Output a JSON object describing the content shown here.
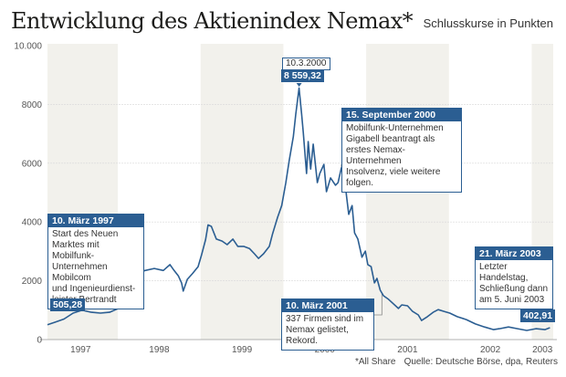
{
  "header": {
    "title": "Entwicklung des Aktienindex Nemax*",
    "subtitle": "Schlusskurse in Punkten"
  },
  "footer": {
    "note": "*All Share",
    "source": "Quelle: Deutsche Börse, dpa, Reuters"
  },
  "colors": {
    "line": "#2b5e92",
    "band": "#f2f1ec",
    "grid": "#d8d8d8",
    "accent": "#2b5e92"
  },
  "chart_data": {
    "type": "line",
    "title": "Entwicklung des Aktienindex Nemax*",
    "subtitle": "Schlusskurse in Punkten",
    "xlabel": "",
    "ylabel": "",
    "ylim": [
      0,
      10000
    ],
    "xlim": [
      1997.15,
      2003.26
    ],
    "grid": true,
    "y_ticks": [
      {
        "value": 0,
        "label": "0"
      },
      {
        "value": 2000,
        "label": "2000"
      },
      {
        "value": 4000,
        "label": "4000"
      },
      {
        "value": 6000,
        "label": "6000"
      },
      {
        "value": 8000,
        "label": "8000"
      },
      {
        "value": 10000,
        "label": "10.000"
      }
    ],
    "x_ticks": [
      {
        "value": 1997.55,
        "label": "1997"
      },
      {
        "value": 1998.5,
        "label": "1998"
      },
      {
        "value": 1999.5,
        "label": "1999"
      },
      {
        "value": 2000.5,
        "label": "2000"
      },
      {
        "value": 2001.5,
        "label": "2001"
      },
      {
        "value": 2002.5,
        "label": "2002"
      },
      {
        "value": 2003.13,
        "label": "2003"
      }
    ],
    "shaded_years": [
      [
        1997.15,
        1998.0
      ],
      [
        1999.0,
        2000.0
      ],
      [
        2001.0,
        2002.0
      ],
      [
        2003.0,
        2003.26
      ]
    ],
    "series": [
      {
        "name": "Nemax All Share",
        "points": [
          [
            1997.15,
            505
          ],
          [
            1997.24,
            590
          ],
          [
            1997.35,
            700
          ],
          [
            1997.46,
            900
          ],
          [
            1997.57,
            1000
          ],
          [
            1997.68,
            930
          ],
          [
            1997.79,
            900
          ],
          [
            1997.9,
            930
          ],
          [
            1998.0,
            1050
          ],
          [
            1998.09,
            1300
          ],
          [
            1998.15,
            1600
          ],
          [
            1998.2,
            2080
          ],
          [
            1998.22,
            2350
          ],
          [
            1998.27,
            2300
          ],
          [
            1998.33,
            2350
          ],
          [
            1998.44,
            2420
          ],
          [
            1998.55,
            2350
          ],
          [
            1998.63,
            2550
          ],
          [
            1998.68,
            2350
          ],
          [
            1998.73,
            2170
          ],
          [
            1998.77,
            1930
          ],
          [
            1998.79,
            1650
          ],
          [
            1998.84,
            2050
          ],
          [
            1998.9,
            2240
          ],
          [
            1998.97,
            2480
          ],
          [
            1999.01,
            2860
          ],
          [
            1999.06,
            3400
          ],
          [
            1999.09,
            3900
          ],
          [
            1999.13,
            3850
          ],
          [
            1999.19,
            3420
          ],
          [
            1999.26,
            3350
          ],
          [
            1999.32,
            3230
          ],
          [
            1999.39,
            3420
          ],
          [
            1999.45,
            3170
          ],
          [
            1999.52,
            3170
          ],
          [
            1999.59,
            3100
          ],
          [
            1999.65,
            2920
          ],
          [
            1999.7,
            2760
          ],
          [
            1999.76,
            2920
          ],
          [
            1999.83,
            3170
          ],
          [
            1999.87,
            3600
          ],
          [
            1999.93,
            4160
          ],
          [
            1999.98,
            4560
          ],
          [
            2000.03,
            5340
          ],
          [
            2000.07,
            6090
          ],
          [
            2000.12,
            6900
          ],
          [
            2000.15,
            7670
          ],
          [
            2000.19,
            8559
          ],
          [
            2000.22,
            7670
          ],
          [
            2000.24,
            7050
          ],
          [
            2000.28,
            5650
          ],
          [
            2000.3,
            6740
          ],
          [
            2000.33,
            5800
          ],
          [
            2000.36,
            6650
          ],
          [
            2000.41,
            5340
          ],
          [
            2000.44,
            5650
          ],
          [
            2000.49,
            5960
          ],
          [
            2000.52,
            5030
          ],
          [
            2000.57,
            5500
          ],
          [
            2000.63,
            5250
          ],
          [
            2000.66,
            5340
          ],
          [
            2000.7,
            5840
          ],
          [
            2000.75,
            5190
          ],
          [
            2000.79,
            4260
          ],
          [
            2000.83,
            4560
          ],
          [
            2000.86,
            3630
          ],
          [
            2000.9,
            3420
          ],
          [
            2000.95,
            2800
          ],
          [
            2000.99,
            3010
          ],
          [
            2001.02,
            2550
          ],
          [
            2001.06,
            2480
          ],
          [
            2001.1,
            1930
          ],
          [
            2001.13,
            2080
          ],
          [
            2001.17,
            1680
          ],
          [
            2001.21,
            1490
          ],
          [
            2001.27,
            1370
          ],
          [
            2001.32,
            1240
          ],
          [
            2001.39,
            1060
          ],
          [
            2001.43,
            1180
          ],
          [
            2001.5,
            1150
          ],
          [
            2001.56,
            960
          ],
          [
            2001.63,
            840
          ],
          [
            2001.67,
            650
          ],
          [
            2001.74,
            780
          ],
          [
            2001.81,
            930
          ],
          [
            2001.87,
            1020
          ],
          [
            2001.94,
            960
          ],
          [
            2002.01,
            900
          ],
          [
            2002.1,
            780
          ],
          [
            2002.21,
            680
          ],
          [
            2002.32,
            530
          ],
          [
            2002.43,
            430
          ],
          [
            2002.54,
            340
          ],
          [
            2002.61,
            370
          ],
          [
            2002.72,
            430
          ],
          [
            2002.83,
            370
          ],
          [
            2002.94,
            310
          ],
          [
            2003.05,
            370
          ],
          [
            2003.16,
            340
          ],
          [
            2003.22,
            403
          ]
        ]
      }
    ],
    "annotations": [
      {
        "date": "10. März 1997",
        "text": "Start des Neuen Marktes mit Mobilfunk-Unternehmen Mobilcom und Ingenieurdienstleister Bertrandt"
      },
      {
        "date": "10.3.2000",
        "value_label": "8 559,32",
        "value": 8559.32
      },
      {
        "date": "15. September 2000",
        "text": "Mobilfunk-Unternehmen Gigabell beantragt als erstes Nemax-Unternehmen Insolvenz, viele weitere folgen."
      },
      {
        "date": "10. März 2001",
        "text": "337 Firmen sind im Nemax gelistet, Rekord."
      },
      {
        "date": "21. März 2003",
        "text": "Letzter Handelstag, Schließung dann am 5. Juni 2003"
      }
    ],
    "start_value_label": "505,28",
    "start_value": 505.28,
    "end_value_label": "402,91",
    "end_value": 402.91
  },
  "annotations": {
    "a1997": {
      "date": "10. März 1997",
      "lines": [
        "Start des Neuen",
        "Marktes mit Mobilfunk-",
        "Unternehmen Mobilcom",
        "und Ingenieurdienst-",
        "leister Bertrandt"
      ]
    },
    "peak": {
      "date": "10.3.2000",
      "value": "8 559,32"
    },
    "a2000": {
      "date": "15. September 2000",
      "lines": [
        "Mobilfunk-Unternehmen",
        "Gigabell beantragt als",
        "erstes Nemax-Unternehmen",
        "Insolvenz, viele weitere folgen."
      ]
    },
    "a2001": {
      "date": "10. März 2001",
      "lines": [
        "337 Firmen sind im",
        "Nemax gelistet, Rekord."
      ]
    },
    "a2003": {
      "date": "21. März 2003",
      "lines": [
        "Letzter Handelstag,",
        "Schließung dann",
        "am 5. Juni 2003"
      ]
    },
    "start_value": "505,28",
    "end_value": "402,91"
  }
}
